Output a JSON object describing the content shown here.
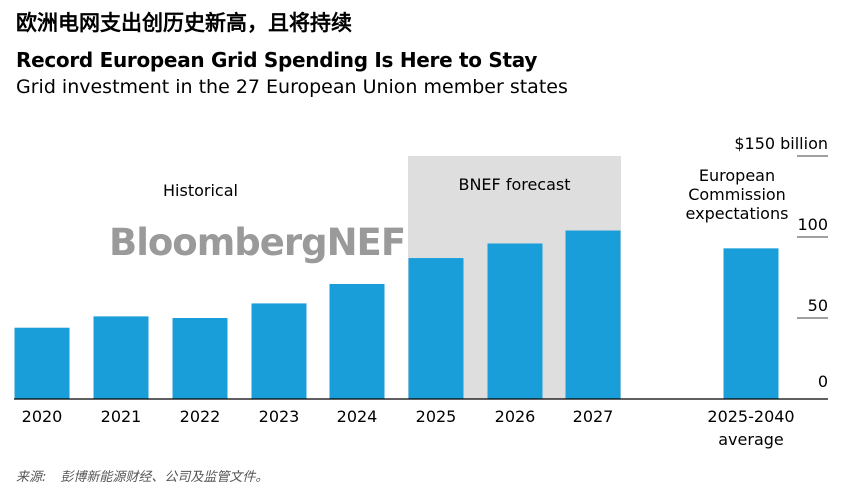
{
  "header": {
    "chinese_title": "欧洲电网支出创历史新高，且将持续",
    "title": "Record European Grid Spending Is Here to Stay",
    "subtitle": "Grid investment in the 27 European Union member states"
  },
  "watermark": "BloombergNEF",
  "source": {
    "label": "来源:",
    "text": "彭博新能源财经、公司及监管文件。"
  },
  "colors": {
    "bar": "#1a9ed9",
    "forecast_band": "#dedede",
    "grid": "#000000",
    "watermark": "#9a9a9a"
  },
  "chart_data": {
    "type": "bar",
    "unit": "$ billion",
    "categories": [
      "2020",
      "2021",
      "2022",
      "2023",
      "2024",
      "2025",
      "2026",
      "2027",
      "2025-2040 average"
    ],
    "category_lines": [
      [
        "2020"
      ],
      [
        "2021"
      ],
      [
        "2022"
      ],
      [
        "2023"
      ],
      [
        "2024"
      ],
      [
        "2025"
      ],
      [
        "2026"
      ],
      [
        "2027"
      ],
      [
        "2025-2040",
        "average"
      ]
    ],
    "values": [
      44,
      51,
      50,
      59,
      71,
      87,
      96,
      104,
      93
    ],
    "ylim": [
      0,
      150
    ],
    "yticks": [
      {
        "value": 0,
        "label": "0"
      },
      {
        "value": 50,
        "label": "50"
      },
      {
        "value": 100,
        "label": "100"
      },
      {
        "value": 150,
        "label": "$150 billion"
      }
    ],
    "grid": true,
    "annotations": {
      "historical": "Historical",
      "forecast": "BNEF forecast",
      "ec_expectations": [
        "European",
        "Commission",
        "expectations"
      ]
    },
    "forecast_categories": [
      "2025",
      "2026",
      "2027"
    ],
    "historical_categories": [
      "2020",
      "2021",
      "2022",
      "2023",
      "2024"
    ]
  }
}
